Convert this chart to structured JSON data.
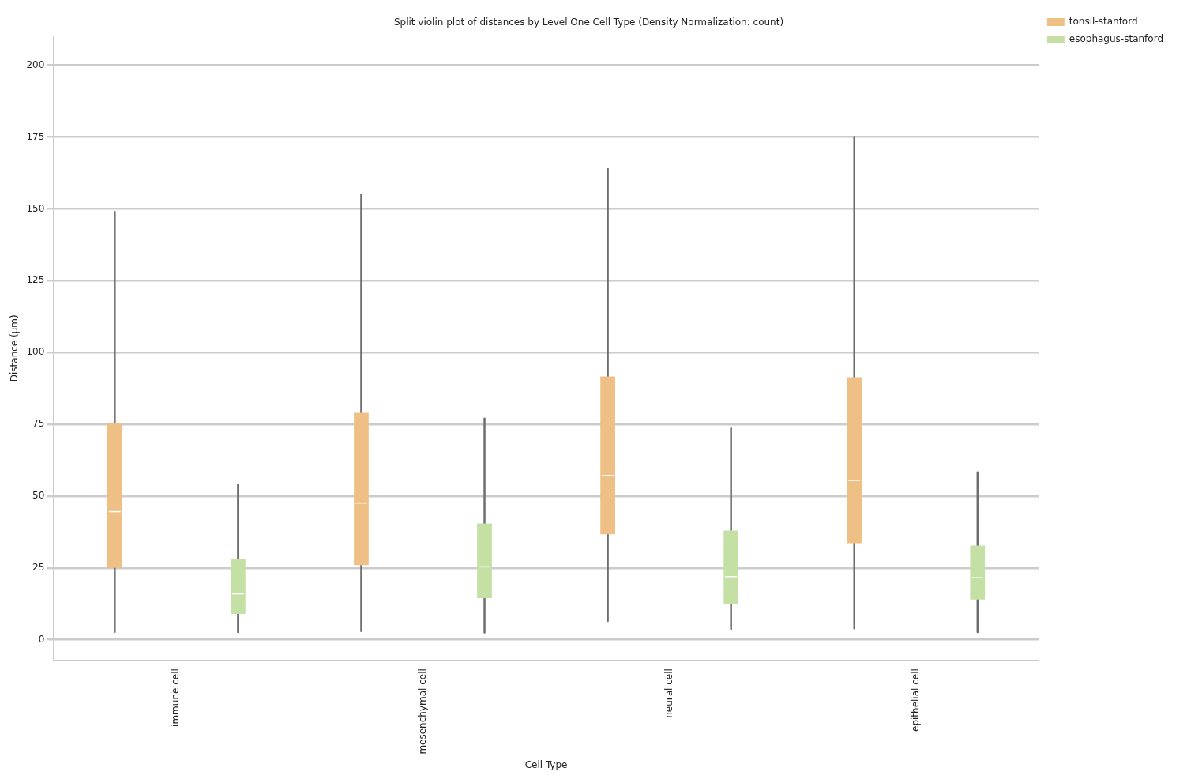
{
  "chart_data": {
    "type": "box",
    "title": "Split violin plot of distances by Level One Cell Type (Density Normalization: count)",
    "xlabel": "Cell Type",
    "ylabel": "Distance (µm)",
    "categories": [
      "immune cell",
      "mesenchymal cell",
      "neural cell",
      "epithelial cell"
    ],
    "ylim": [
      -7,
      210
    ],
    "yticks": [
      0,
      25,
      50,
      75,
      100,
      125,
      150,
      175,
      200
    ],
    "grid": "y",
    "legend": "top right",
    "series": [
      {
        "name": "tonsil-stanford",
        "color": "#efc085",
        "boxes": [
          {
            "low": 2.7,
            "q1": 25,
            "median": 44.6,
            "q3": 75.5,
            "high": 149
          },
          {
            "low": 3,
            "q1": 26,
            "median": 47.6,
            "q3": 79,
            "high": 155
          },
          {
            "low": 6.5,
            "q1": 36.7,
            "median": 57.2,
            "q3": 91.7,
            "high": 164
          },
          {
            "low": 4,
            "q1": 33.6,
            "median": 55.5,
            "q3": 91.4,
            "high": 175
          }
        ]
      },
      {
        "name": "esophagus-stanford",
        "color": "#c5e0a5",
        "boxes": [
          {
            "low": 2.7,
            "q1": 9,
            "median": 16,
            "q3": 28,
            "high": 54
          },
          {
            "low": 2.5,
            "q1": 14.5,
            "median": 25.4,
            "q3": 40.5,
            "high": 77
          },
          {
            "low": 3.8,
            "q1": 12.6,
            "median": 22,
            "q3": 38,
            "high": 73.6
          },
          {
            "low": 2.7,
            "q1": 14,
            "median": 21.6,
            "q3": 32.8,
            "high": 58.3
          }
        ]
      }
    ]
  }
}
